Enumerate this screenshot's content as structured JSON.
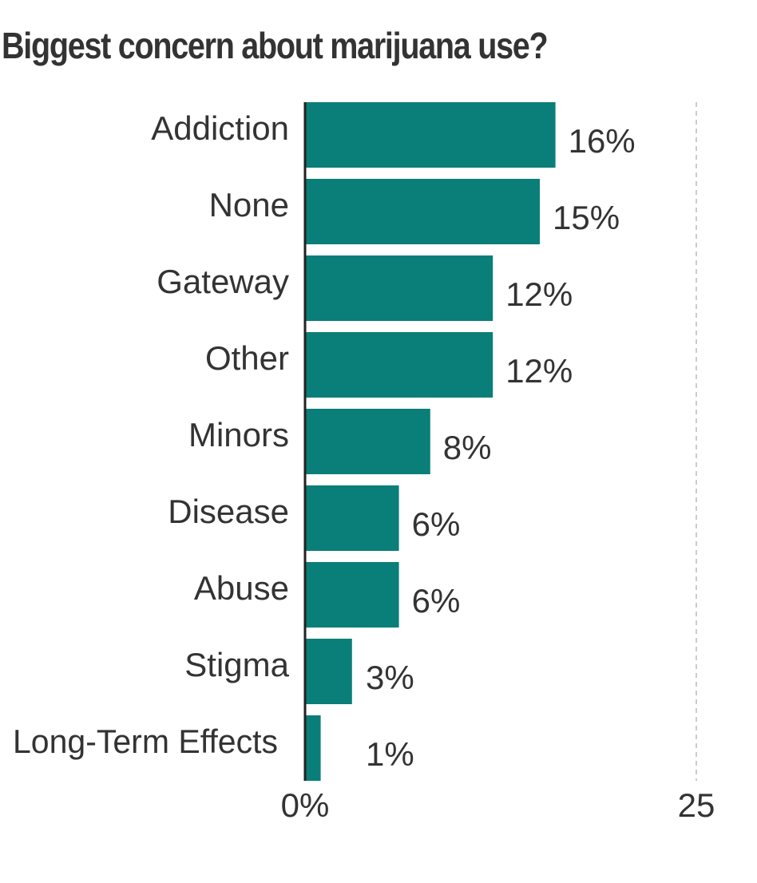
{
  "chart_data": {
    "type": "bar",
    "orientation": "horizontal",
    "title": "Biggest concern about marijuana use?",
    "categories": [
      "Addiction",
      "None",
      "Gateway",
      "Other",
      "Minors",
      "Disease",
      "Abuse",
      "Stigma",
      "Long-Term Effects"
    ],
    "values": [
      16,
      15,
      12,
      12,
      8,
      6,
      6,
      3,
      1
    ],
    "value_labels": [
      "16%",
      "15%",
      "12%",
      "12%",
      "8%",
      "6%",
      "6%",
      "3%",
      "1%"
    ],
    "xlim": [
      0,
      25
    ],
    "x_ticks": [
      0,
      25
    ],
    "x_tick_labels": [
      "0%",
      "25"
    ],
    "xlabel": "",
    "ylabel": "",
    "grid": "dashed reference line at 25",
    "legend": "none",
    "colors": {
      "bar": "#0a7e78",
      "axis": "#222222",
      "gridline": "#cccccc",
      "text": "#333333"
    }
  }
}
